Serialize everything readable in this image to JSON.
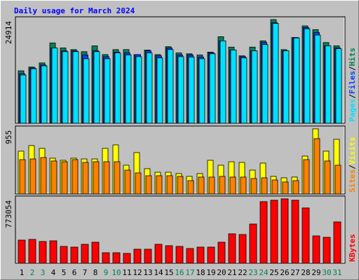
{
  "chart_data": [
    {
      "type": "bar",
      "title": "Daily usage for March 2024",
      "ylim": [
        0,
        24914
      ],
      "yticks": [
        24914
      ],
      "legend_separator": "/",
      "series": [
        {
          "name": "Hits",
          "color": "#00805c",
          "values": [
            12600,
            13500,
            14500,
            19300,
            18100,
            17700,
            17200,
            18600,
            16500,
            17700,
            17700,
            16500,
            17600,
            16500,
            18400,
            16900,
            16700,
            16400,
            17100,
            20800,
            18300,
            16200,
            18300,
            19800,
            24914,
            17700,
            20600,
            23400,
            22500,
            19400,
            18600
          ]
        },
        {
          "name": "Files",
          "color": "#0040ff",
          "values": [
            11900,
            13300,
            14000,
            18100,
            17400,
            17400,
            16400,
            17400,
            16000,
            17100,
            16900,
            16500,
            17400,
            16200,
            18100,
            16400,
            16400,
            15900,
            16900,
            19800,
            17600,
            16000,
            17400,
            19400,
            24200,
            17400,
            20600,
            23000,
            21800,
            18600,
            18100
          ]
        },
        {
          "name": "Pages",
          "color": "#00e0ff",
          "values": [
            11600,
            13100,
            13800,
            18100,
            17200,
            17200,
            15500,
            17200,
            15500,
            16900,
            16400,
            16000,
            16900,
            15700,
            17700,
            16000,
            15900,
            15500,
            16700,
            19800,
            17600,
            15700,
            17400,
            18900,
            24000,
            17400,
            20500,
            22700,
            21200,
            18600,
            17900
          ]
        }
      ]
    },
    {
      "type": "bar",
      "ylim": [
        0,
        955
      ],
      "yticks": [
        955
      ],
      "legend_separator": "/",
      "series": [
        {
          "name": "Visits",
          "color": "#ffff00",
          "values": [
            627,
            709,
            668,
            524,
            493,
            524,
            513,
            513,
            668,
            719,
            421,
            606,
            370,
            318,
            318,
            298,
            257,
            298,
            493,
            421,
            472,
            462,
            349,
            452,
            257,
            236,
            247,
            555,
            955,
            627,
            801
          ]
        },
        {
          "name": "Sites",
          "color": "#ff8000",
          "values": [
            503,
            513,
            534,
            483,
            472,
            503,
            462,
            472,
            472,
            472,
            349,
            308,
            267,
            267,
            267,
            257,
            195,
            247,
            247,
            257,
            247,
            247,
            226,
            236,
            205,
            175,
            195,
            503,
            811,
            483,
            421
          ]
        }
      ]
    },
    {
      "type": "bar",
      "ylim": [
        0,
        773054
      ],
      "yticks": [
        773054
      ],
      "categories": [
        "1",
        "2",
        "3",
        "4",
        "5",
        "6",
        "7",
        "8",
        "9",
        "10",
        "11",
        "12",
        "13",
        "14",
        "15",
        "16",
        "17",
        "18",
        "19",
        "20",
        "21",
        "22",
        "23",
        "24",
        "25",
        "26",
        "27",
        "28",
        "29",
        "30",
        "31"
      ],
      "category_colors": [
        "#000000",
        "#00805c",
        "#00805c",
        "#000000",
        "#000000",
        "#000000",
        "#000000",
        "#000000",
        "#00805c",
        "#00805c",
        "#000000",
        "#000000",
        "#000000",
        "#000000",
        "#000000",
        "#00805c",
        "#00805c",
        "#000000",
        "#000000",
        "#000000",
        "#000000",
        "#000000",
        "#00805c",
        "#00805c",
        "#000000",
        "#000000",
        "#000000",
        "#000000",
        "#000000",
        "#00805c",
        "#00805c"
      ],
      "series": [
        {
          "name": "KBytes",
          "color": "#ff0000",
          "values": [
            277300,
            285700,
            260500,
            268900,
            201700,
            193300,
            226900,
            252100,
            126000,
            126000,
            117600,
            168000,
            168000,
            226900,
            210000,
            201700,
            176400,
            193300,
            193300,
            252100,
            352900,
            344500,
            470500,
            739400,
            756200,
            773054,
            756200,
            663800,
            327700,
            310900,
            495800
          ]
        }
      ]
    }
  ]
}
